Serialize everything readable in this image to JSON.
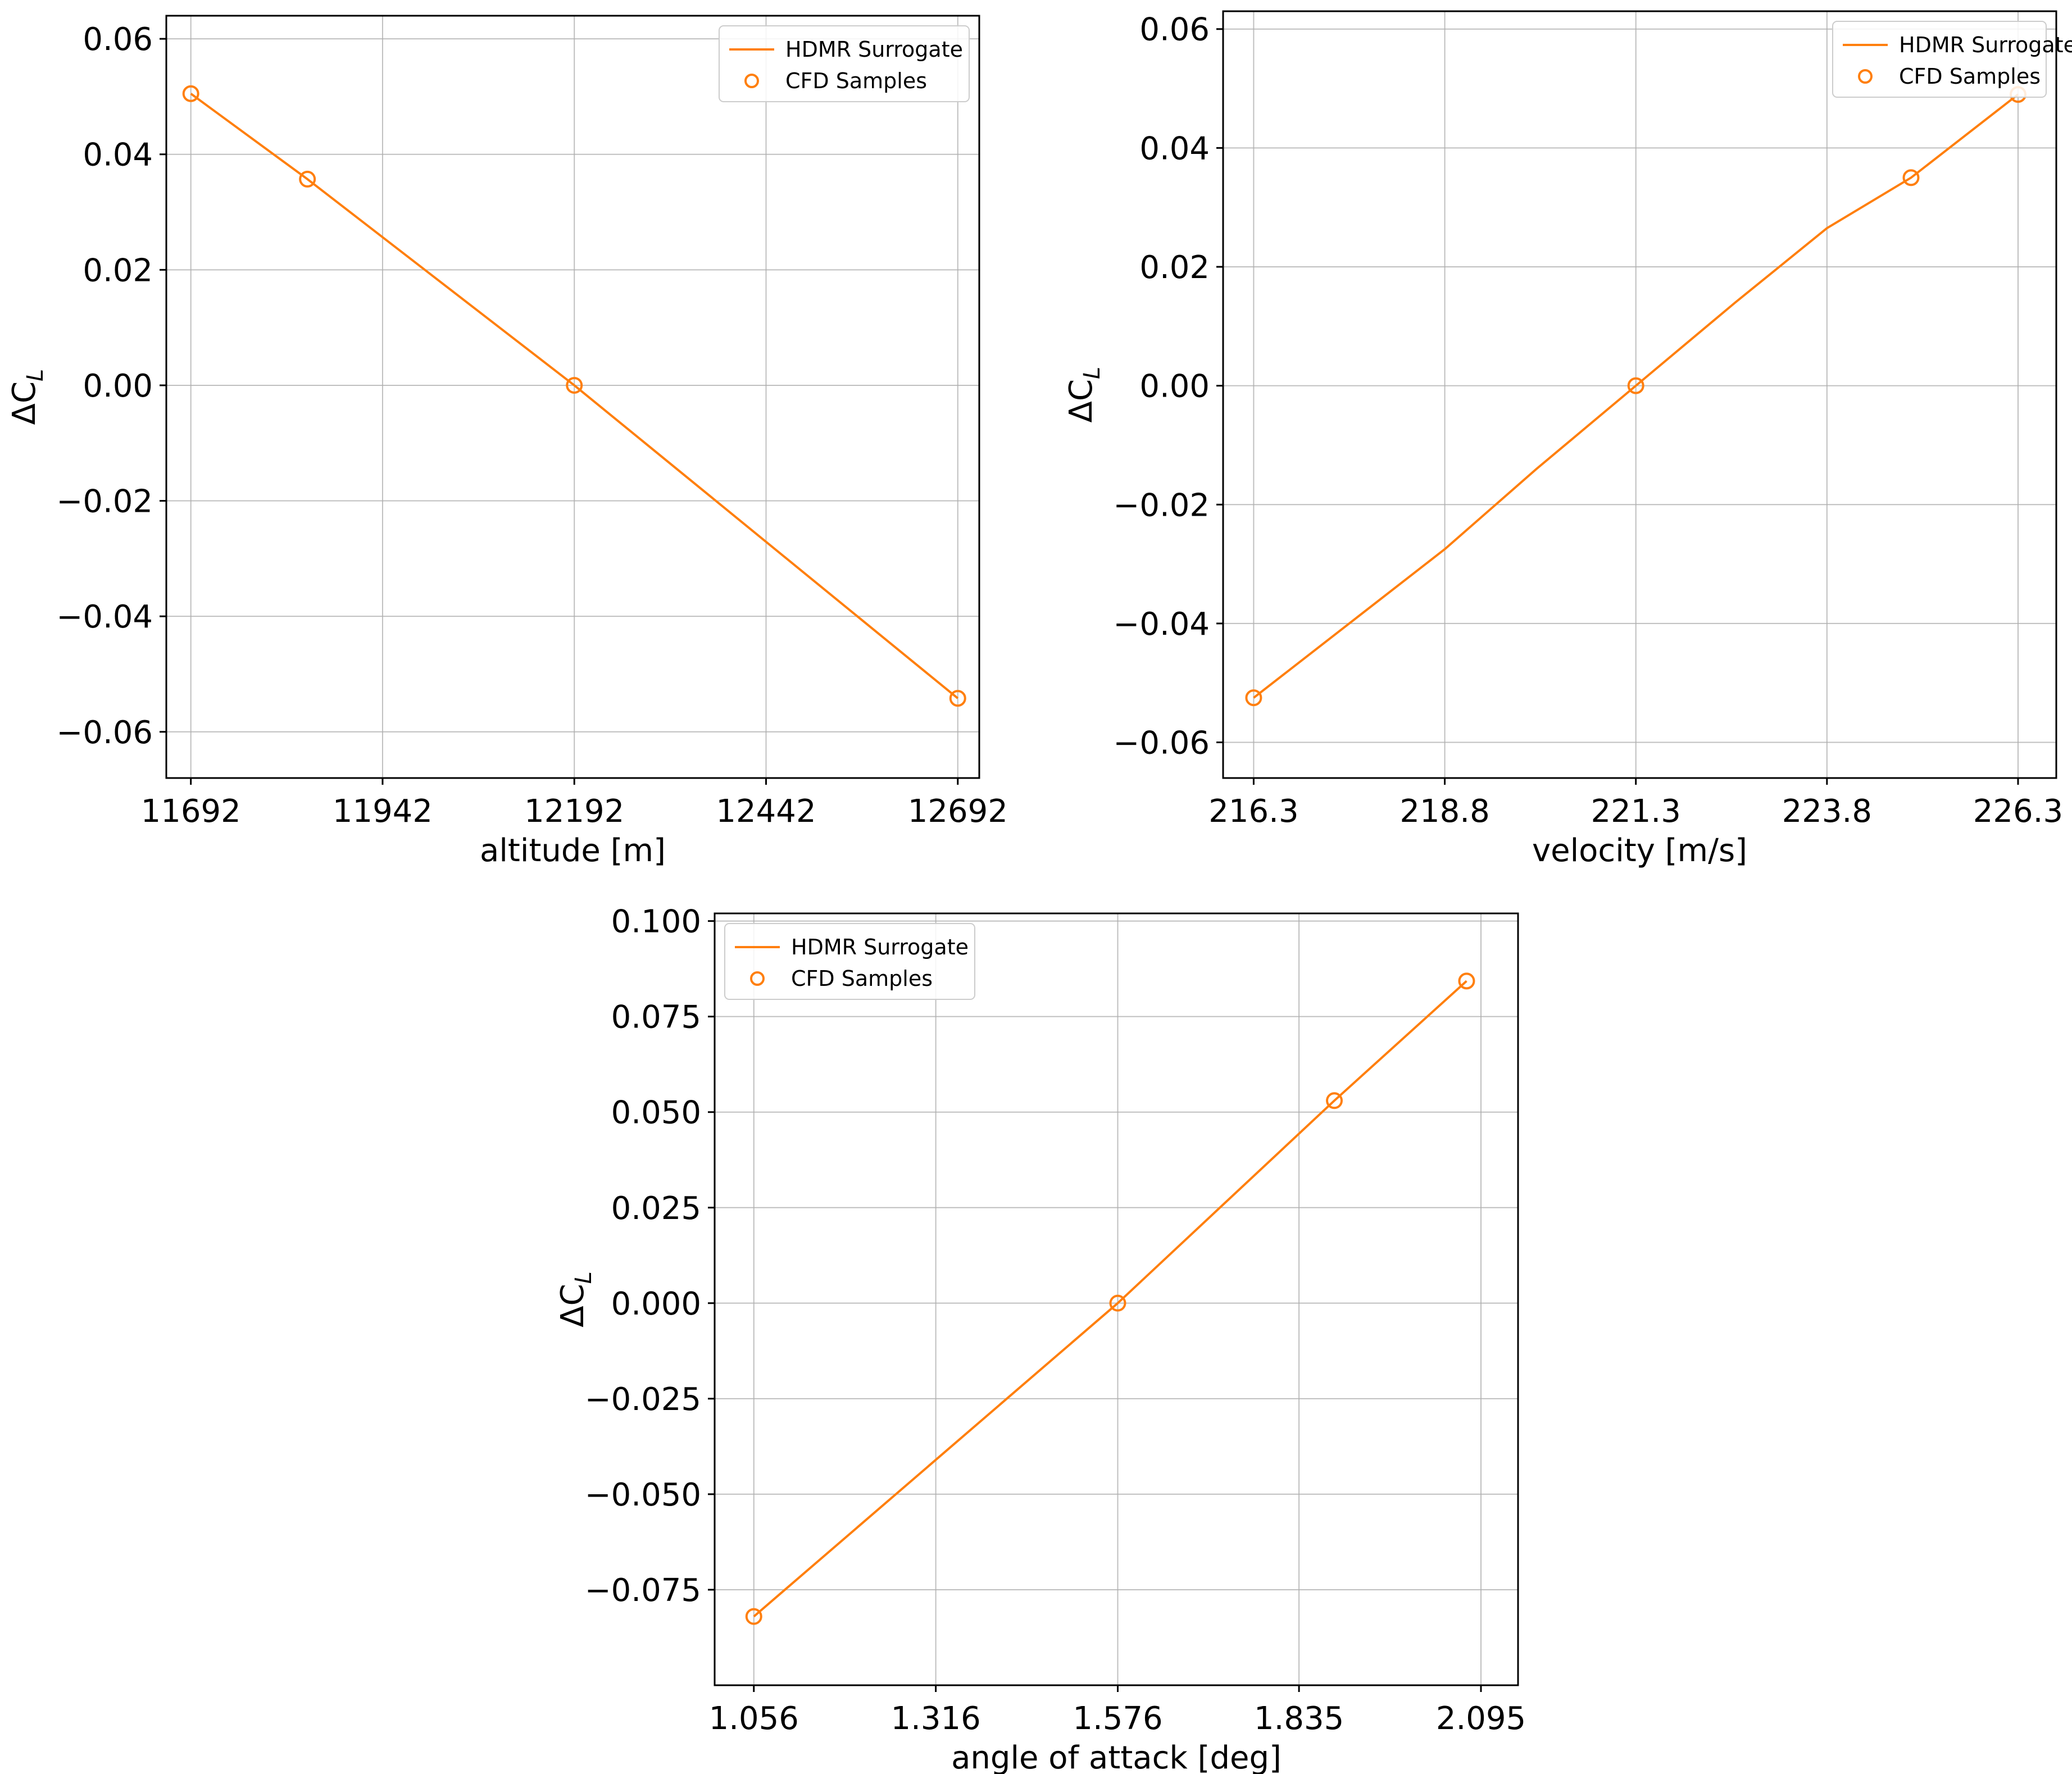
{
  "colors": {
    "series": "#ff7f0e",
    "grid": "#b0b0b0",
    "axis": "#000000"
  },
  "chart_data": [
    {
      "type": "line",
      "xlabel": "altitude [m]",
      "ylabel": "ΔC",
      "ylabel_sub": "L",
      "xlim": [
        11660,
        12720
      ],
      "ylim": [
        -0.068,
        0.064
      ],
      "xticks": [
        11692,
        11942,
        12192,
        12442,
        12692
      ],
      "xtick_labels": [
        "11692",
        "11942",
        "12192",
        "12442",
        "12692"
      ],
      "yticks": [
        -0.06,
        -0.04,
        -0.02,
        0.0,
        0.02,
        0.04,
        0.06
      ],
      "ytick_labels": [
        "−0.06",
        "−0.04",
        "−0.02",
        "0.00",
        "0.02",
        "0.04",
        "0.06"
      ],
      "grid": true,
      "legend_position": "top-right",
      "legend": [
        "HDMR Surrogate",
        "CFD Samples"
      ],
      "series": [
        {
          "name": "HDMR Surrogate",
          "kind": "line",
          "x": [
            11692,
            11844,
            12192,
            12692
          ],
          "y": [
            0.0505,
            0.0357,
            0.0,
            -0.0542
          ]
        },
        {
          "name": "CFD Samples",
          "kind": "scatter",
          "x": [
            11692,
            11844,
            12192,
            12692
          ],
          "y": [
            0.0505,
            0.0357,
            0.0,
            -0.0542
          ]
        }
      ]
    },
    {
      "type": "line",
      "xlabel": "velocity [m/s]",
      "ylabel": "ΔC",
      "ylabel_sub": "L",
      "xlim": [
        215.9,
        226.8
      ],
      "ylim": [
        -0.066,
        0.063
      ],
      "xticks": [
        216.3,
        218.8,
        221.3,
        223.8,
        226.3
      ],
      "xtick_labels": [
        "216.3",
        "218.8",
        "221.3",
        "223.8",
        "226.3"
      ],
      "yticks": [
        -0.06,
        -0.04,
        -0.02,
        0.0,
        0.02,
        0.04,
        0.06
      ],
      "ytick_labels": [
        "−0.06",
        "−0.04",
        "−0.02",
        "0.00",
        "0.02",
        "0.04",
        "0.06"
      ],
      "grid": true,
      "legend_position": "top-right",
      "legend": [
        "HDMR Surrogate",
        "CFD Samples"
      ],
      "series": [
        {
          "name": "HDMR Surrogate",
          "kind": "line",
          "x": [
            216.3,
            217.5,
            218.8,
            220.0,
            221.3,
            222.6,
            223.8,
            224.9,
            226.3
          ],
          "y": [
            -0.0525,
            -0.0405,
            -0.0275,
            -0.014,
            0.0,
            0.014,
            0.0265,
            0.035,
            0.049
          ]
        },
        {
          "name": "CFD Samples",
          "kind": "scatter",
          "x": [
            216.3,
            221.3,
            224.9,
            226.3
          ],
          "y": [
            -0.0525,
            0.0,
            0.035,
            0.049
          ]
        }
      ]
    },
    {
      "type": "line",
      "xlabel": "angle of attack [deg]",
      "ylabel": "ΔC",
      "ylabel_sub": "L",
      "xlim": [
        1.0,
        2.148
      ],
      "ylim": [
        -0.1,
        0.102
      ],
      "xticks": [
        1.056,
        1.316,
        1.576,
        1.835,
        2.095
      ],
      "xtick_labels": [
        "1.056",
        "1.316",
        "1.576",
        "1.835",
        "2.095"
      ],
      "yticks": [
        -0.075,
        -0.05,
        -0.025,
        0.0,
        0.025,
        0.05,
        0.075,
        0.1
      ],
      "ytick_labels": [
        "−0.075",
        "−0.050",
        "−0.025",
        "0.000",
        "0.025",
        "0.050",
        "0.075",
        "0.100"
      ],
      "grid": true,
      "legend_position": "top-left",
      "legend": [
        "HDMR Surrogate",
        "CFD Samples"
      ],
      "series": [
        {
          "name": "HDMR Surrogate",
          "kind": "line",
          "x": [
            1.056,
            1.576,
            1.8855,
            2.0745
          ],
          "y": [
            -0.082,
            0.0,
            0.053,
            0.0843
          ]
        },
        {
          "name": "CFD Samples",
          "kind": "scatter",
          "x": [
            1.056,
            1.576,
            1.8855,
            2.0745
          ],
          "y": [
            -0.082,
            0.0,
            0.053,
            0.0843
          ]
        }
      ]
    }
  ]
}
